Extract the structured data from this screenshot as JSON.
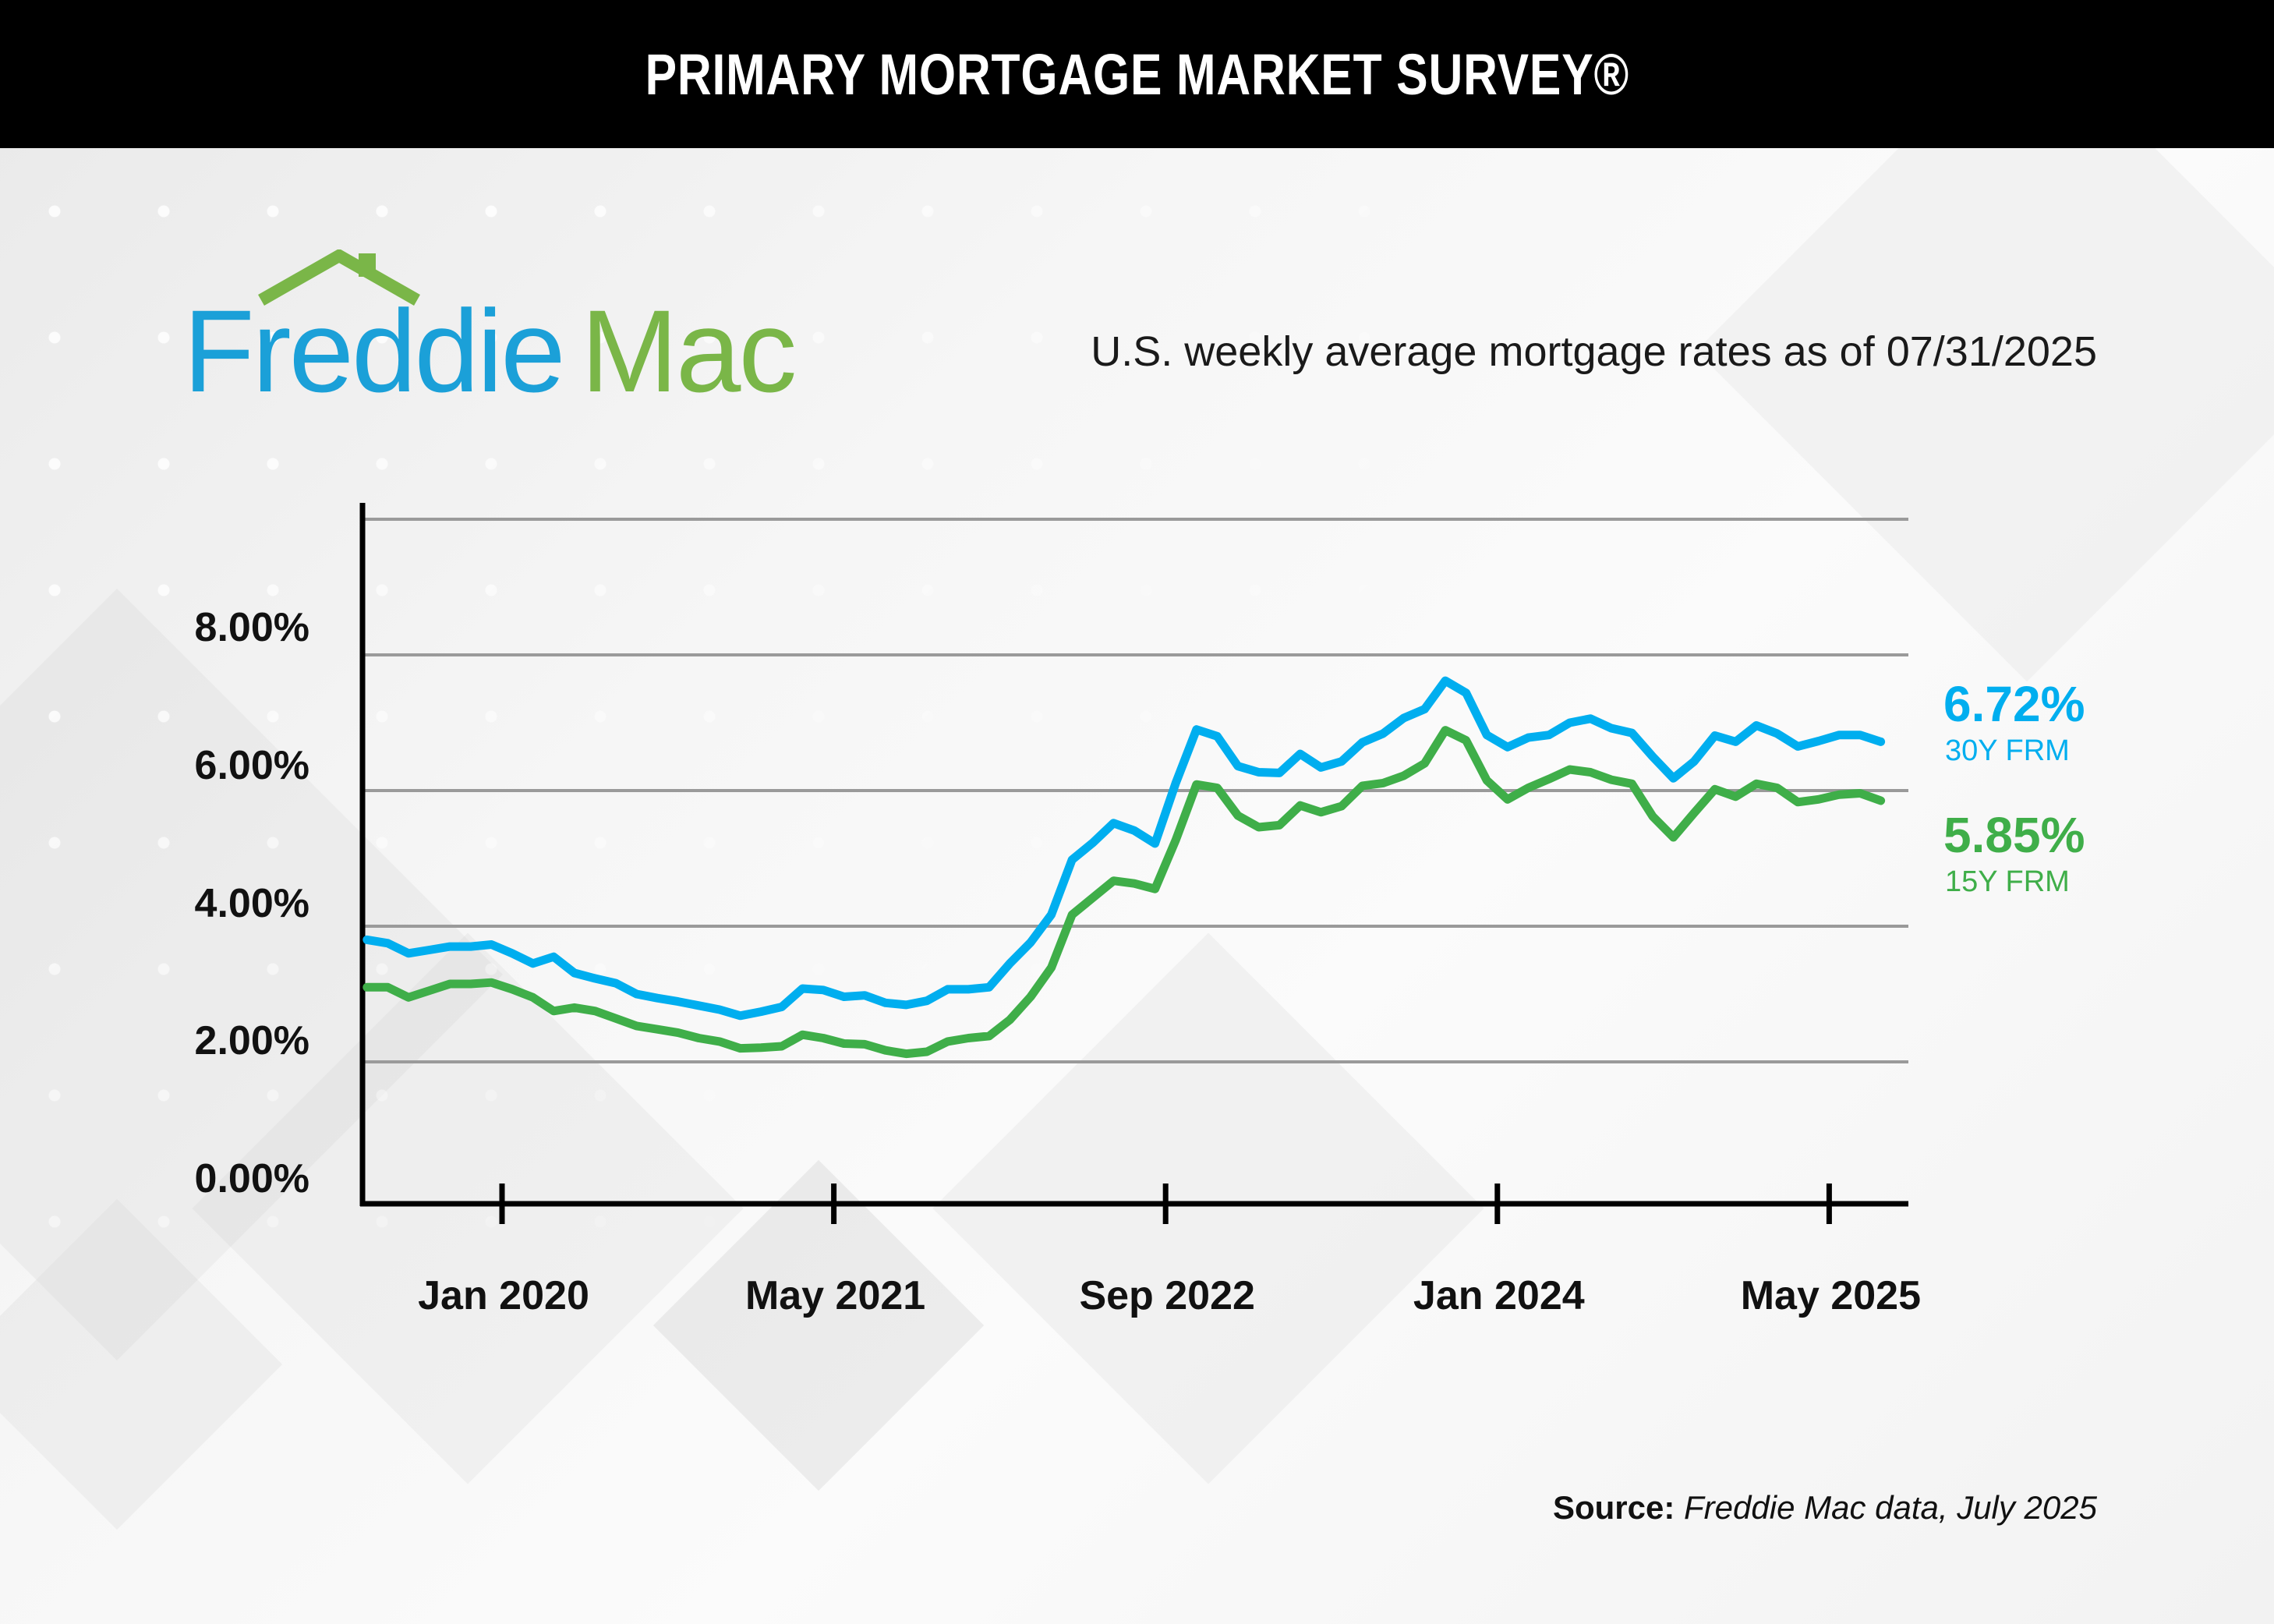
{
  "header": {
    "title": "PRIMARY MORTGAGE MARKET SURVEY®"
  },
  "logo": {
    "part1": "Freddie",
    "part2": "Mac"
  },
  "subtitle": "U.S. weekly average mortgage rates as of 07/31/2025",
  "source": {
    "label": "Source:",
    "text": "Freddie Mac data, July 2025"
  },
  "colors": {
    "series30": "#00aeef",
    "series15": "#3fae49",
    "logoBlue": "#1ba0d8",
    "logoGreen": "#7ab648"
  },
  "chart_data": {
    "type": "line",
    "title": "U.S. weekly average mortgage rates as of 07/31/2025",
    "xlabel": "",
    "ylabel": "",
    "ylim": [
      0,
      10
    ],
    "ytick_labels": [
      "8.00%",
      "6.00%",
      "4.00%",
      "2.00%",
      "0.00%"
    ],
    "gridlines": [
      2,
      4,
      6,
      8,
      10
    ],
    "xtick_labels": [
      "Jan 2020",
      "May 2021",
      "Sep 2022",
      "Jan 2024",
      "May 2025"
    ],
    "xtick_month_index": [
      7,
      23,
      39,
      55,
      71
    ],
    "x_start": "Jun 2019",
    "x_end": "Jul 2025",
    "x_unit": "month",
    "series": [
      {
        "name": "30Y FRM",
        "end_label": "6.72%",
        "values": [
          3.8,
          3.75,
          3.6,
          3.65,
          3.7,
          3.7,
          3.73,
          3.6,
          3.45,
          3.55,
          3.31,
          3.23,
          3.16,
          3.0,
          2.94,
          2.89,
          2.83,
          2.77,
          2.68,
          2.74,
          2.81,
          3.08,
          3.06,
          2.96,
          2.98,
          2.87,
          2.84,
          2.9,
          3.07,
          3.07,
          3.1,
          3.45,
          3.76,
          4.17,
          4.98,
          5.23,
          5.52,
          5.41,
          5.22,
          6.11,
          6.9,
          6.8,
          6.36,
          6.27,
          6.26,
          6.54,
          6.34,
          6.43,
          6.71,
          6.84,
          7.07,
          7.2,
          7.62,
          7.44,
          6.82,
          6.64,
          6.78,
          6.82,
          7.0,
          7.06,
          6.92,
          6.85,
          6.5,
          6.18,
          6.43,
          6.81,
          6.72,
          6.96,
          6.84,
          6.65,
          6.73,
          6.82,
          6.82,
          6.72
        ]
      },
      {
        "name": "15Y FRM",
        "end_label": "5.85%",
        "values": [
          3.1,
          3.1,
          2.95,
          3.05,
          3.15,
          3.15,
          3.17,
          3.07,
          2.95,
          2.75,
          2.8,
          2.75,
          2.64,
          2.53,
          2.48,
          2.43,
          2.35,
          2.3,
          2.2,
          2.21,
          2.23,
          2.4,
          2.35,
          2.27,
          2.26,
          2.17,
          2.12,
          2.15,
          2.3,
          2.35,
          2.38,
          2.62,
          2.96,
          3.39,
          4.17,
          4.42,
          4.67,
          4.63,
          4.55,
          5.27,
          6.09,
          6.04,
          5.63,
          5.46,
          5.49,
          5.78,
          5.68,
          5.77,
          6.07,
          6.11,
          6.22,
          6.4,
          6.89,
          6.74,
          6.15,
          5.87,
          6.04,
          6.17,
          6.31,
          6.27,
          6.16,
          6.1,
          5.62,
          5.31,
          5.67,
          6.02,
          5.91,
          6.1,
          6.04,
          5.83,
          5.87,
          5.94,
          5.96,
          5.85
        ]
      }
    ],
    "legend": "right"
  }
}
